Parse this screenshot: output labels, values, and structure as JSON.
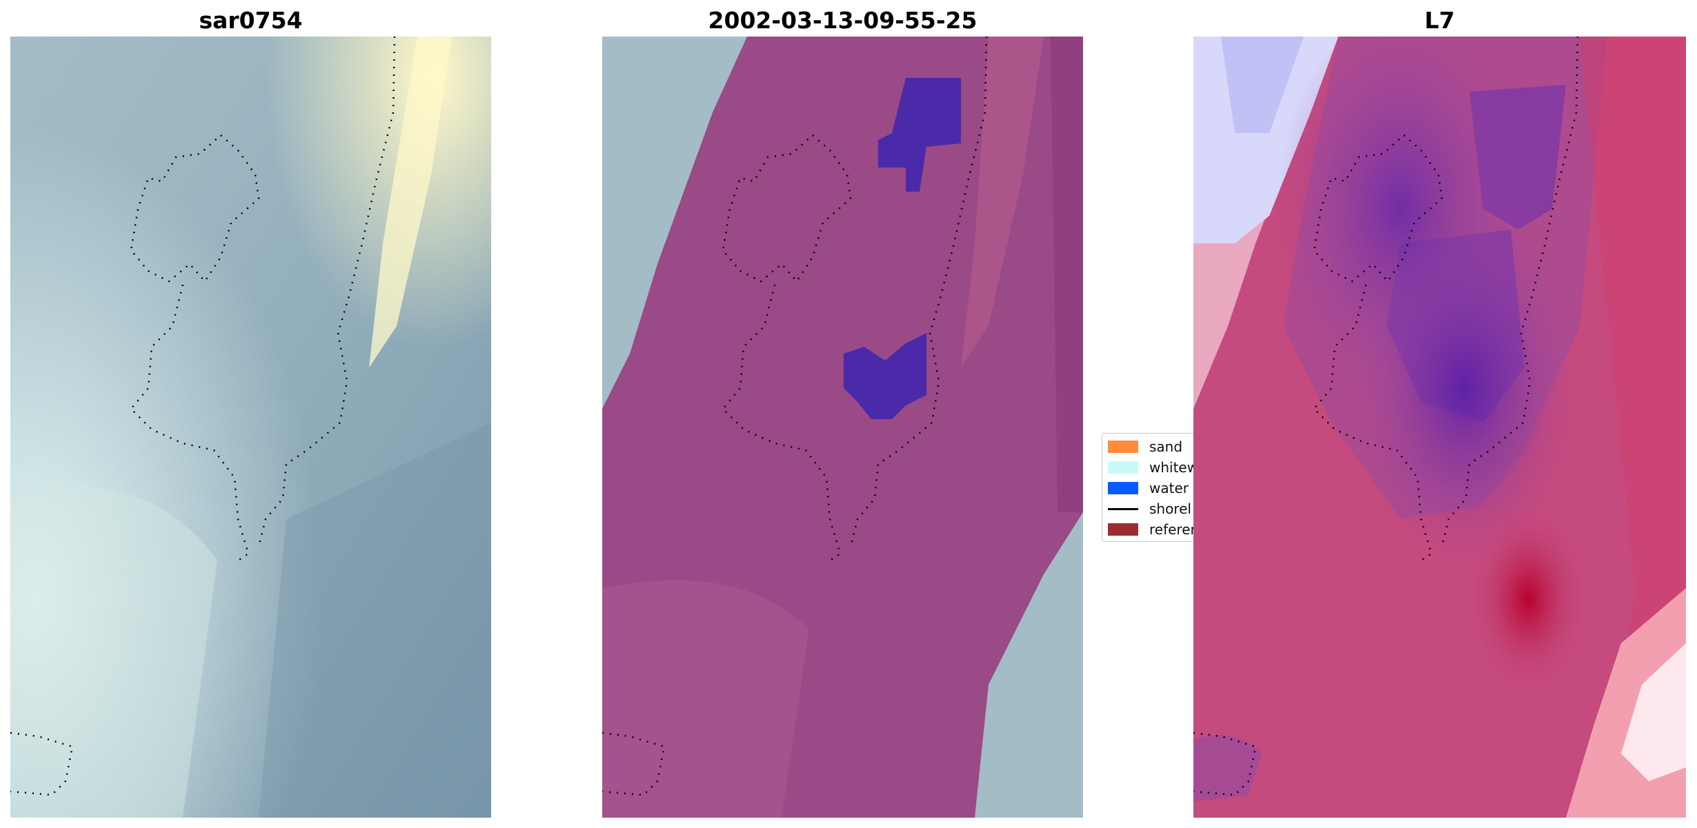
{
  "panels": [
    {
      "title": "sar0754"
    },
    {
      "title": "2002-03-13-09-55-25"
    },
    {
      "title": "L7"
    }
  ],
  "legend": {
    "items": [
      {
        "label": "sand",
        "color": "#ff8c3c",
        "kind": "patch"
      },
      {
        "label": "whitew",
        "color": "#c8fafa",
        "kind": "patch"
      },
      {
        "label": "water",
        "color": "#0a5aff",
        "kind": "patch"
      },
      {
        "label": "shorel",
        "color": "#000000",
        "kind": "line"
      },
      {
        "label": "referen",
        "color": "#9b2d32",
        "kind": "patch"
      }
    ]
  },
  "colors": {
    "rgb_base": "#a3bcc6",
    "classified_overlay": "#9a4a86",
    "water_class": "#4a2aa8",
    "l7_base": "#c54a7e",
    "l7_dark": "#6a2aa8",
    "l7_bright_red": "#e03a4a",
    "l7_white_blue": "#c8c8f6"
  }
}
